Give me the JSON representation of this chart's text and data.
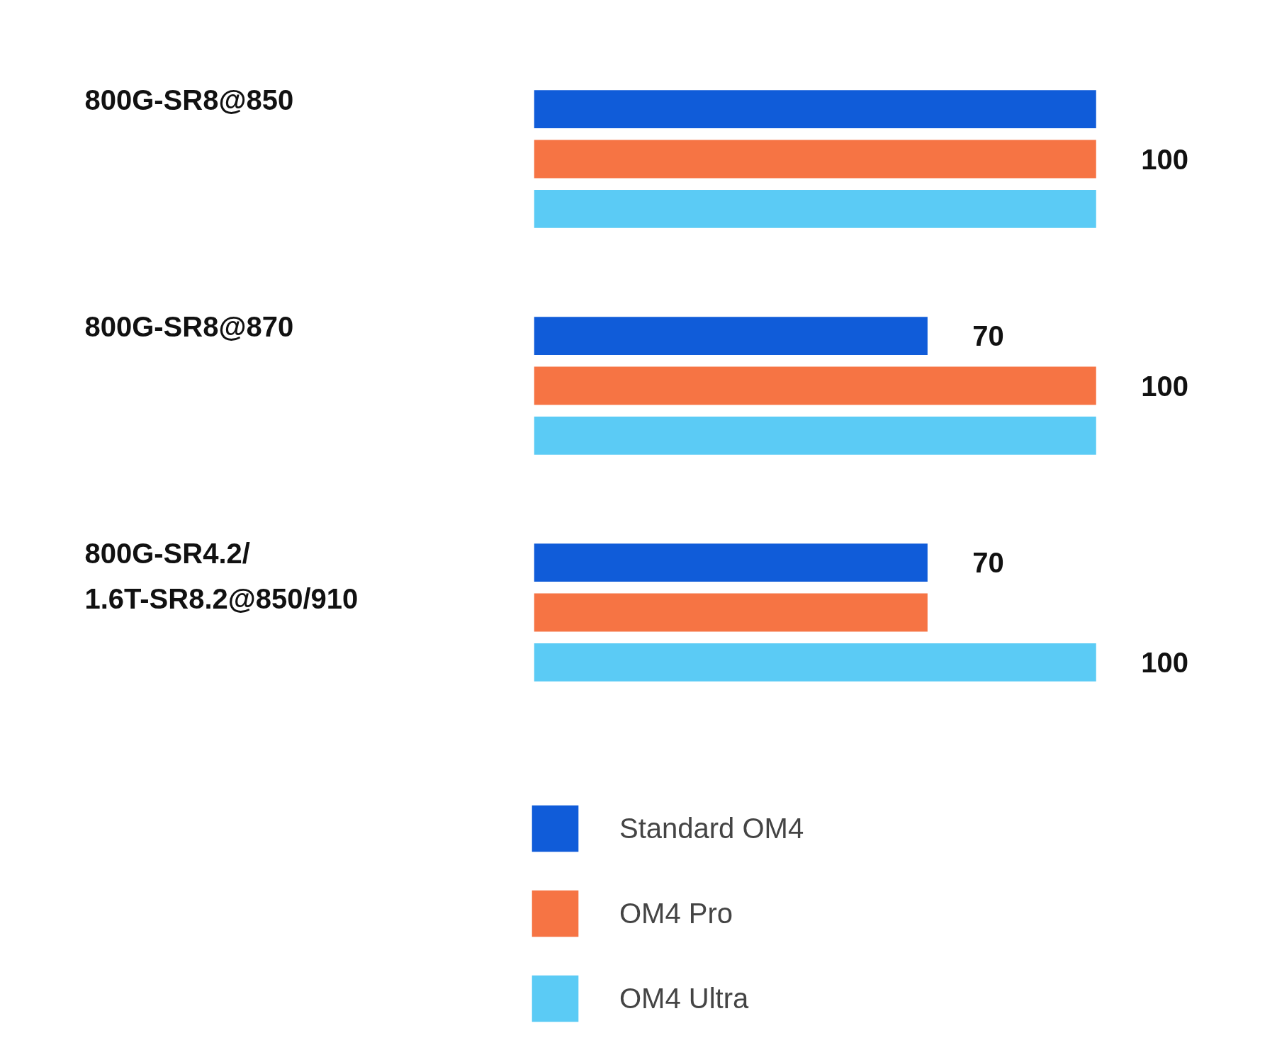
{
  "chart_data": {
    "type": "bar",
    "orientation": "horizontal",
    "categories": [
      "800G-SR8@850",
      "800G-SR8@870",
      "800G-SR4.2/\n1.6T-SR8.2@850/910"
    ],
    "series": [
      {
        "name": "Standard OM4",
        "color": "#105cd9",
        "values": [
          100,
          70,
          70
        ],
        "value_labels": [
          null,
          "70",
          "70"
        ]
      },
      {
        "name": "OM4 Pro",
        "color": "#f67444",
        "values": [
          100,
          100,
          70
        ],
        "value_labels": [
          "100",
          "100",
          null
        ]
      },
      {
        "name": "OM4 Ultra",
        "color": "#5bcbf5",
        "values": [
          100,
          100,
          100
        ],
        "value_labels": [
          null,
          null,
          "100"
        ]
      }
    ],
    "legend": "bottom",
    "grid": false
  }
}
